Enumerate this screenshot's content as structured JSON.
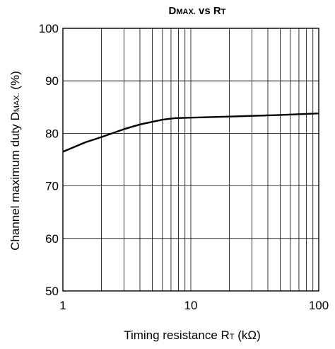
{
  "chart_data": {
    "type": "line",
    "title": {
      "part1_main": "D",
      "part1_sub": "MAX.",
      "mid": " vs ",
      "part2_main": "R",
      "part2_sub": "T"
    },
    "xlabel": {
      "pre": "Timing resistance  R",
      "sub": "T",
      "post": " (kΩ)"
    },
    "ylabel": {
      "pre": "Channel maximum duty  D",
      "sub": "MAX.",
      "post": " (%)"
    },
    "x_scale": "log",
    "xlim": [
      1,
      100
    ],
    "ylim": [
      50,
      100
    ],
    "x_tick_labels": [
      "1",
      "10",
      "100"
    ],
    "x_ticks": [
      1,
      10,
      100
    ],
    "y_tick_labels": [
      "50",
      "60",
      "70",
      "80",
      "90",
      "100"
    ],
    "y_ticks": [
      50,
      60,
      70,
      80,
      90,
      100
    ],
    "grid": true,
    "series": [
      {
        "x": [
          1,
          1.5,
          2,
          3,
          4,
          5,
          6,
          7,
          7.5,
          10,
          20,
          50,
          100
        ],
        "y": [
          76.5,
          78.3,
          79.3,
          80.8,
          81.7,
          82.2,
          82.6,
          82.8,
          82.9,
          83.0,
          83.2,
          83.5,
          83.8
        ]
      }
    ],
    "line_color": "#000000",
    "grid_color": "#000000"
  }
}
